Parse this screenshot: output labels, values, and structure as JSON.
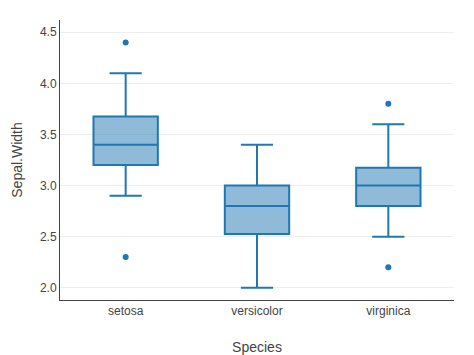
{
  "chart_data": {
    "type": "box",
    "xlabel": "Species",
    "ylabel": "Sepal.Width",
    "categories": [
      "setosa",
      "versicolor",
      "virginica"
    ],
    "boxes": [
      {
        "q1": 3.2,
        "median": 3.4,
        "q3": 3.675,
        "whisker_low": 2.9,
        "whisker_high": 4.1,
        "outliers": [
          4.4,
          2.3
        ]
      },
      {
        "q1": 2.525,
        "median": 2.8,
        "q3": 3.0,
        "whisker_low": 2.0,
        "whisker_high": 3.4,
        "outliers": []
      },
      {
        "q1": 2.8,
        "median": 3.0,
        "q3": 3.175,
        "whisker_low": 2.5,
        "whisker_high": 3.6,
        "outliers": [
          3.8,
          2.2
        ]
      }
    ],
    "ylim": [
      1.88,
      4.62
    ],
    "yticks": [
      {
        "value": 2.0,
        "label": "2.0"
      },
      {
        "value": 2.5,
        "label": "2.5"
      },
      {
        "value": 3.0,
        "label": "3.0"
      },
      {
        "value": 3.5,
        "label": "3.5"
      },
      {
        "value": 4.0,
        "label": "4.0"
      },
      {
        "value": 4.5,
        "label": "4.5"
      }
    ],
    "grid": true
  }
}
